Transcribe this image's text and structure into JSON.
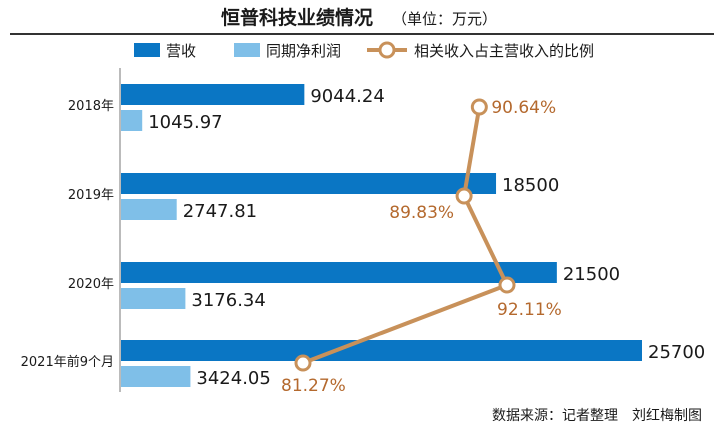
{
  "chart_data": {
    "type": "bar",
    "orientation": "horizontal",
    "title": "恒普科技业绩情况",
    "unit": "（单位：万元）",
    "categories": [
      "2018年",
      "2019年",
      "2020年",
      "2021年前9个月"
    ],
    "series": [
      {
        "name": "营收",
        "values": [
          9044.24,
          18500,
          21500,
          25700
        ],
        "labels": [
          "9044.24",
          "18500",
          "21500",
          "25700"
        ],
        "color": "#0a76c4"
      },
      {
        "name": "同期净利润",
        "values": [
          1045.97,
          2747.81,
          3176.34,
          3424.05
        ],
        "labels": [
          "1045.97",
          "2747.81",
          "3176.34",
          "3424.05"
        ],
        "color": "#7fbfe8"
      }
    ],
    "line_series": {
      "name": "相关收入占主营收入的比例",
      "values": [
        90.64,
        89.83,
        92.11,
        81.27
      ],
      "labels": [
        "90.64%",
        "89.83%",
        "92.11%",
        "81.27%"
      ],
      "color": "#c8915a",
      "label_color": "#b4692e"
    },
    "xlim": [
      0,
      25700
    ],
    "pct_range": [
      81.27,
      92.11
    ],
    "legend_position": "top",
    "source": "数据来源：记者整理　刘红梅制图"
  }
}
